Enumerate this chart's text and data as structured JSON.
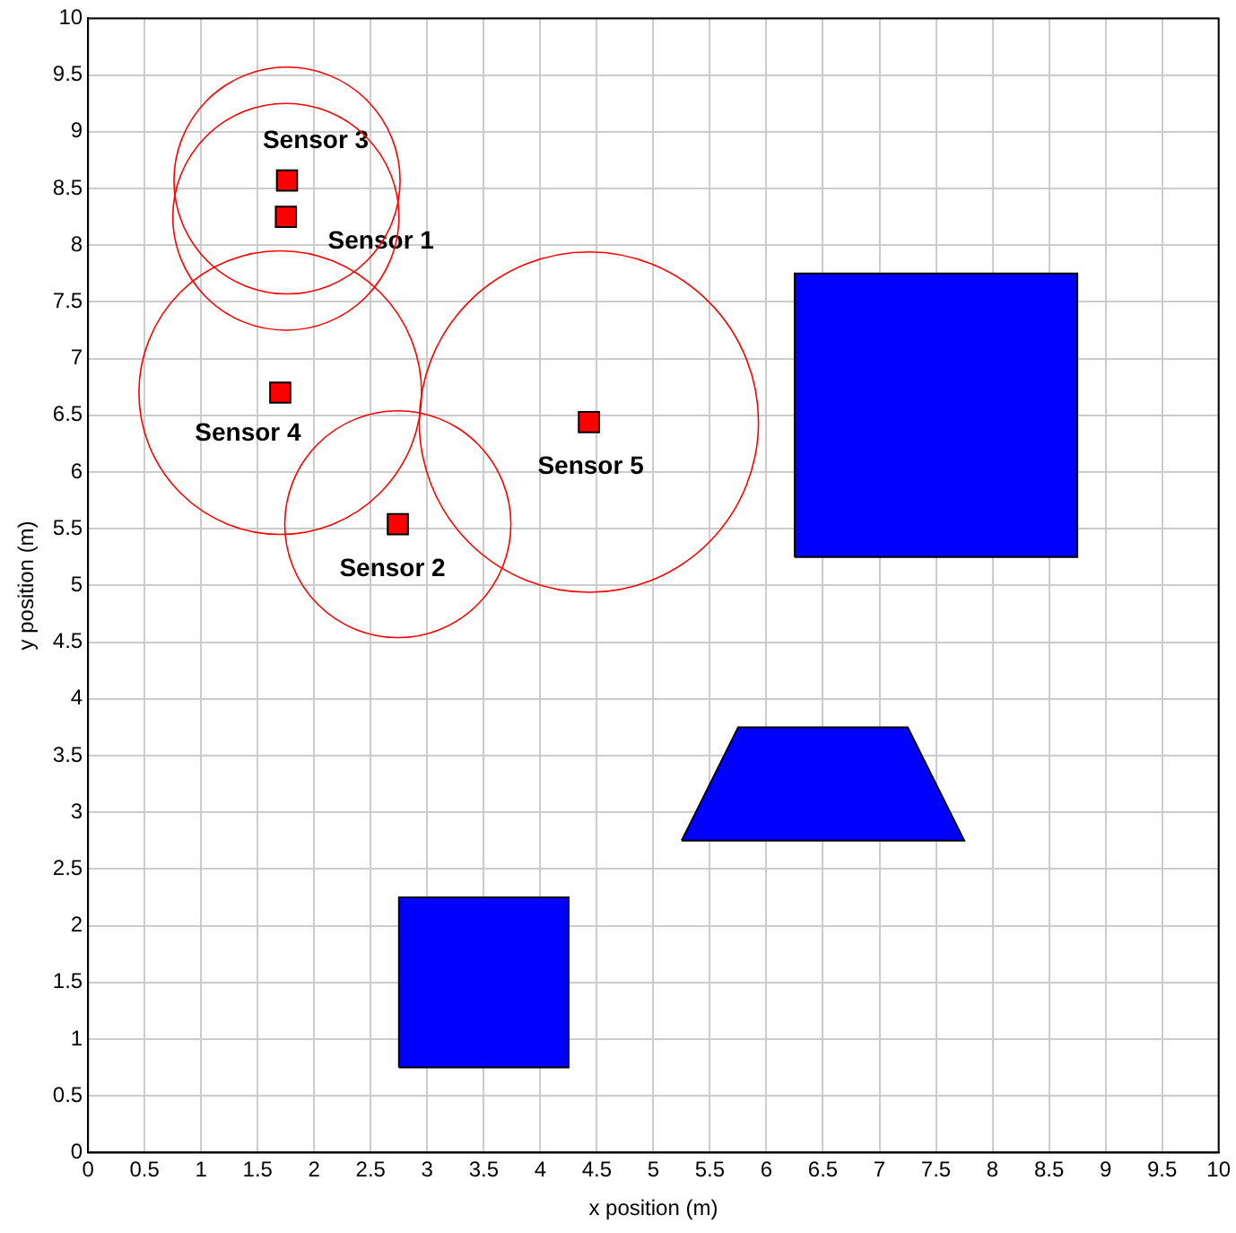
{
  "chart_data": {
    "type": "scatter",
    "xlabel": "x position (m)",
    "ylabel": "y position (m)",
    "xlim": [
      0,
      10
    ],
    "ylim": [
      0,
      10
    ],
    "xticks": [
      0,
      0.5,
      1,
      1.5,
      2,
      2.5,
      3,
      3.5,
      4,
      4.5,
      5,
      5.5,
      6,
      6.5,
      7,
      7.5,
      8,
      8.5,
      9,
      9.5,
      10
    ],
    "yticks": [
      0,
      0.5,
      1,
      1.5,
      2,
      2.5,
      3,
      3.5,
      4,
      4.5,
      5,
      5.5,
      6,
      6.5,
      7,
      7.5,
      8,
      8.5,
      9,
      9.5,
      10
    ],
    "grid": true,
    "legend": false,
    "series": [
      {
        "type": "area",
        "marker": "none",
        "color": "#0000ff",
        "x": [
          6.25,
          8.75,
          8.75,
          6.25,
          6.25
        ],
        "values": [
          5.25,
          5.25,
          7.75,
          7.75,
          5.25
        ]
      },
      {
        "type": "area",
        "marker": "none",
        "color": "#0000ff",
        "x": [
          5.25,
          7.75,
          7.25,
          5.75,
          5.25
        ],
        "values": [
          2.75,
          2.75,
          3.75,
          3.75,
          2.75
        ]
      },
      {
        "type": "area",
        "marker": "none",
        "color": "#0000ff",
        "x": [
          2.75,
          4.25,
          4.25,
          2.75,
          2.75
        ],
        "values": [
          0.75,
          0.75,
          2.25,
          2.25,
          0.75
        ]
      },
      {
        "type": "scatter",
        "marker": "square",
        "color": "#ff0000",
        "x": [
          1.75,
          2.74,
          1.76,
          1.7,
          4.43
        ],
        "values": [
          8.25,
          5.54,
          8.57,
          6.7,
          6.44
        ]
      }
    ],
    "annotations": [
      "Sensor 1",
      "Sensor 2",
      "Sensor 3",
      "Sensor 4",
      "Sensor 5"
    ]
  }
}
